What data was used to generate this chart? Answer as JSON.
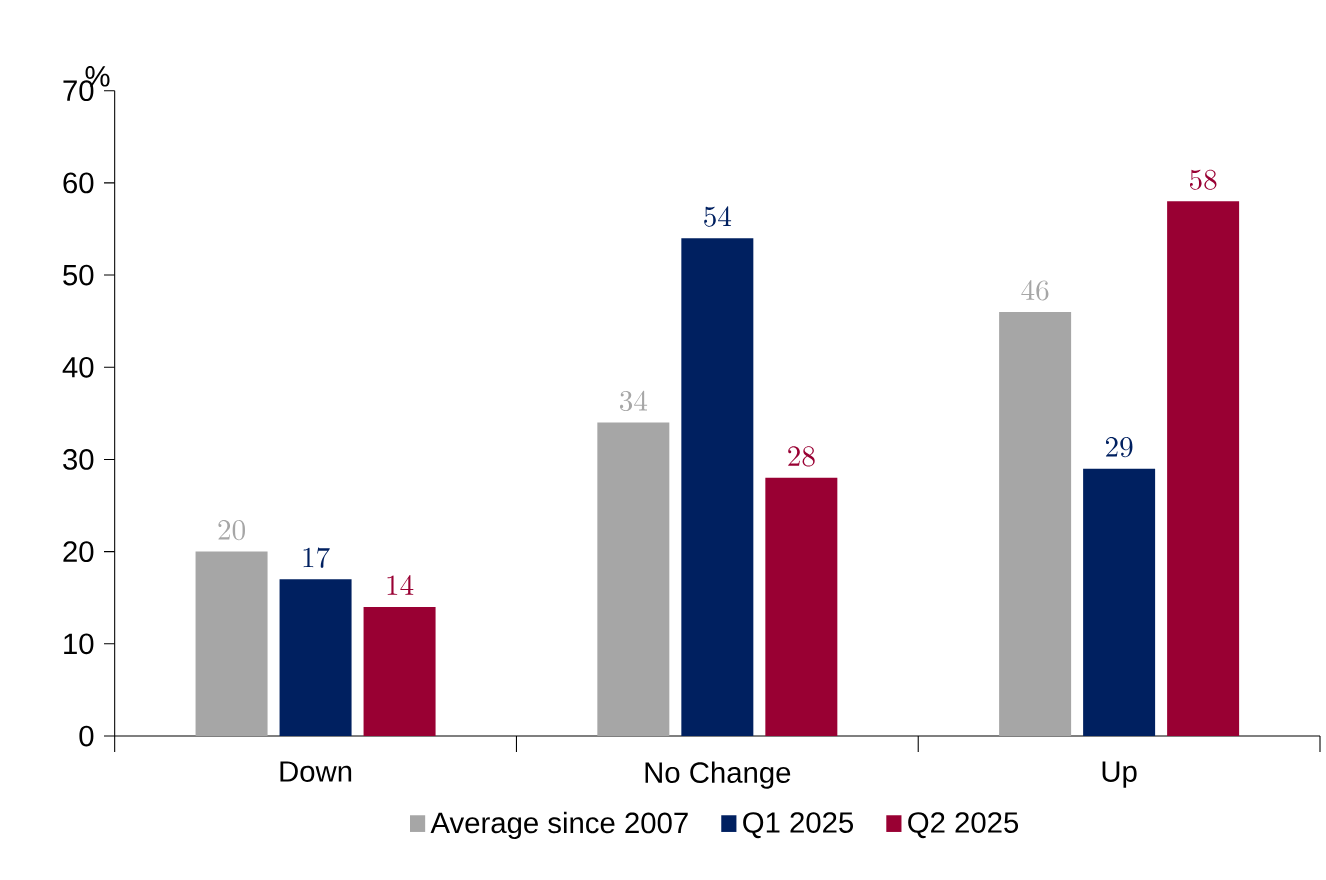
{
  "chart_data": {
    "type": "bar",
    "ylabel": "%",
    "categories": [
      "Down",
      "No Change",
      "Up"
    ],
    "series": [
      {
        "name": "Average since 2007",
        "color": "#a6a6a6",
        "values": [
          20,
          34,
          46
        ]
      },
      {
        "name": "Q1 2025",
        "color": "#002060",
        "values": [
          17,
          54,
          29
        ]
      },
      {
        "name": "Q2 2025",
        "color": "#990033",
        "values": [
          14,
          28,
          58
        ]
      }
    ],
    "ylim": [
      0,
      70
    ],
    "yticks": [
      0,
      10,
      20,
      30,
      40,
      50,
      60,
      70
    ],
    "data_labels": true,
    "legend": "bottom",
    "grid": false
  }
}
